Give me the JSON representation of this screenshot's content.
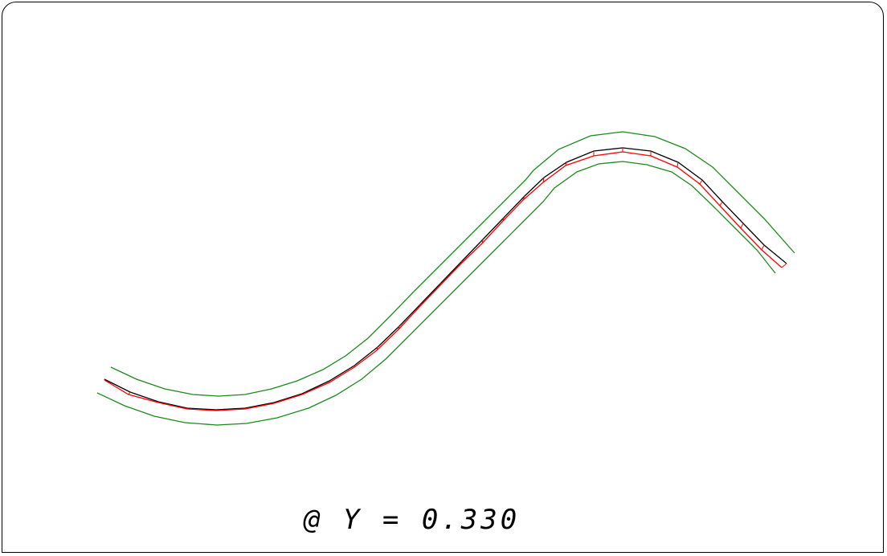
{
  "caption": "@ Y = 0.330",
  "colors": {
    "envelope": "#1a8a1a",
    "profile": "#000000",
    "offset_profile": "#ff0000"
  },
  "curves": {
    "upper_envelope": [
      [
        138,
        457
      ],
      [
        170,
        472
      ],
      [
        205,
        484
      ],
      [
        240,
        491
      ],
      [
        272,
        493
      ],
      [
        305,
        491
      ],
      [
        338,
        484
      ],
      [
        370,
        474
      ],
      [
        402,
        460
      ],
      [
        430,
        443
      ],
      [
        458,
        421
      ],
      [
        486,
        393
      ],
      [
        514,
        364
      ],
      [
        542,
        336
      ],
      [
        570,
        308
      ],
      [
        598,
        280
      ],
      [
        626,
        252
      ],
      [
        654,
        224
      ],
      [
        664,
        212
      ],
      [
        695,
        186
      ],
      [
        735,
        169
      ],
      [
        775,
        164
      ],
      [
        815,
        170
      ],
      [
        853,
        185
      ],
      [
        887,
        208
      ],
      [
        919,
        240
      ],
      [
        951,
        272
      ],
      [
        989,
        315
      ]
    ],
    "profile_black": [
      [
        130,
        472
      ],
      [
        162,
        488
      ],
      [
        197,
        500
      ],
      [
        233,
        508
      ],
      [
        269,
        510
      ],
      [
        305,
        508
      ],
      [
        341,
        501
      ],
      [
        376,
        490
      ],
      [
        410,
        474
      ],
      [
        441,
        455
      ],
      [
        470,
        432
      ],
      [
        497,
        406
      ],
      [
        523,
        379
      ],
      [
        549,
        352
      ],
      [
        575,
        325
      ],
      [
        601,
        298
      ],
      [
        627,
        271
      ],
      [
        653,
        244
      ],
      [
        677,
        221
      ],
      [
        705,
        202
      ],
      [
        739,
        188
      ],
      [
        775,
        184
      ],
      [
        810,
        188
      ],
      [
        844,
        202
      ],
      [
        874,
        224
      ],
      [
        899,
        251
      ],
      [
        925,
        278
      ],
      [
        951,
        305
      ],
      [
        979,
        328
      ]
    ],
    "profile_red": [
      [
        130,
        473
      ],
      [
        160,
        491
      ],
      [
        197,
        501
      ],
      [
        233,
        509
      ],
      [
        269,
        511
      ],
      [
        305,
        509
      ],
      [
        341,
        502
      ],
      [
        376,
        491
      ],
      [
        410,
        476
      ],
      [
        441,
        457
      ],
      [
        469,
        436
      ],
      [
        496,
        410
      ],
      [
        522,
        382
      ],
      [
        548,
        355
      ],
      [
        574,
        328
      ],
      [
        600,
        303
      ],
      [
        626,
        275
      ],
      [
        651,
        249
      ],
      [
        676,
        227
      ],
      [
        704,
        206
      ],
      [
        739,
        194
      ],
      [
        775,
        189
      ],
      [
        810,
        194
      ],
      [
        843,
        208
      ],
      [
        871,
        229
      ],
      [
        896,
        256
      ],
      [
        922,
        284
      ],
      [
        948,
        311
      ],
      [
        973,
        333
      ]
    ],
    "lower_envelope": [
      [
        121,
        489
      ],
      [
        155,
        505
      ],
      [
        192,
        518
      ],
      [
        230,
        526
      ],
      [
        270,
        529
      ],
      [
        307,
        527
      ],
      [
        345,
        520
      ],
      [
        384,
        508
      ],
      [
        418,
        492
      ],
      [
        450,
        472
      ],
      [
        480,
        447
      ],
      [
        508,
        419
      ],
      [
        536,
        391
      ],
      [
        564,
        363
      ],
      [
        592,
        335
      ],
      [
        620,
        307
      ],
      [
        648,
        279
      ],
      [
        676,
        251
      ],
      [
        690,
        234
      ],
      [
        718,
        214
      ],
      [
        745,
        204
      ],
      [
        775,
        201
      ],
      [
        805,
        205
      ],
      [
        836,
        214
      ],
      [
        861,
        231
      ],
      [
        886,
        255
      ],
      [
        914,
        283
      ],
      [
        942,
        311
      ],
      [
        965,
        340
      ]
    ]
  }
}
